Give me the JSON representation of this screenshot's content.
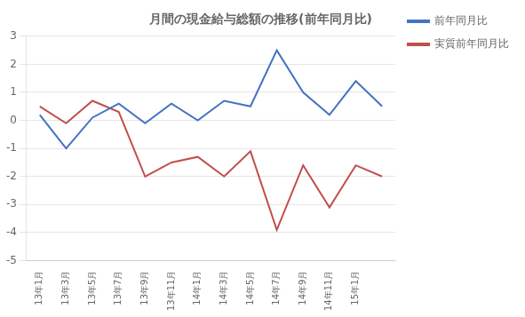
{
  "chart_data": {
    "type": "line",
    "title": "月間の現金給与総額の推移(前年同月比)",
    "categories": [
      "13年1月",
      "13年3月",
      "13年5月",
      "13年7月",
      "13年9月",
      "13年11月",
      "14年1月",
      "14年3月",
      "14年5月",
      "14年7月",
      "14年9月",
      "14年11月",
      "15年1月",
      null
    ],
    "series": [
      {
        "name": "前年同月比",
        "color": "#4472C4",
        "values": [
          0.2,
          -1.0,
          0.1,
          0.6,
          -0.1,
          0.6,
          0.0,
          0.7,
          0.5,
          2.5,
          1.0,
          0.2,
          1.4,
          0.5
        ]
      },
      {
        "name": "実質前年同月比",
        "color": "#C0504D",
        "values": [
          0.5,
          -0.1,
          0.7,
          0.3,
          -2.0,
          -1.5,
          -1.3,
          -2.0,
          -1.1,
          -3.9,
          -1.6,
          -3.1,
          -1.6,
          -2.0
        ]
      }
    ],
    "ylim": [
      -5.0,
      3.0
    ],
    "yticks": [
      -5.0,
      -4.0,
      -3.0,
      -2.0,
      -1.0,
      0.0,
      1.0,
      2.0,
      3.0
    ],
    "grid": true,
    "legend": "right"
  }
}
